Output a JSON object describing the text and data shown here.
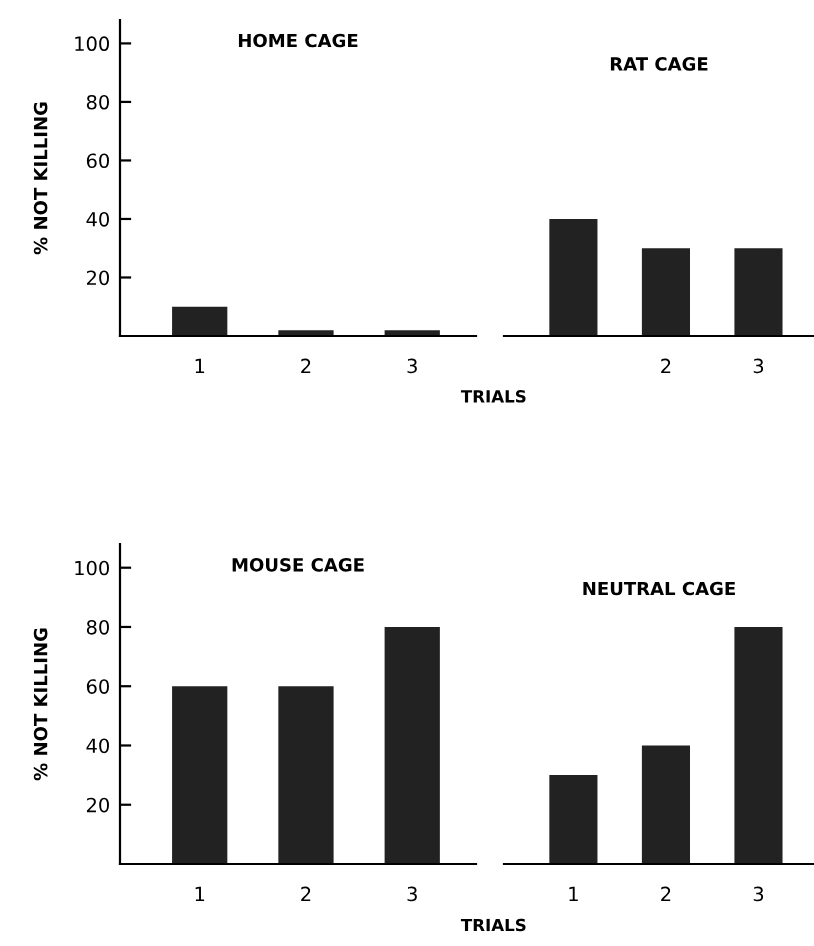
{
  "chart_data": [
    {
      "type": "bar",
      "title": "HOME CAGE",
      "ylabel": "% NOT KILLING",
      "xlabel": "TRIALS",
      "categories": [
        "1",
        "2",
        "3"
      ],
      "values": [
        10,
        2,
        2
      ],
      "color": "#222222",
      "ylim": [
        0,
        108
      ],
      "yticks": [
        20,
        40,
        60,
        80,
        100
      ],
      "grid": false,
      "legend": false
    },
    {
      "type": "bar",
      "title": "RAT CAGE",
      "categories": [
        null,
        "2",
        "3"
      ],
      "values": [
        40,
        30,
        30
      ],
      "color": "#222222",
      "ylim": [
        0,
        100
      ],
      "yticks": [
        20,
        40,
        60,
        80,
        100
      ],
      "tick_labels": "x",
      "grid": false,
      "legend": false
    },
    {
      "type": "bar",
      "title": "MOUSE CAGE",
      "ylabel": "% NOT KILLING",
      "xlabel": "TRIALS",
      "categories": [
        "1",
        "2",
        "3"
      ],
      "values": [
        60,
        60,
        80
      ],
      "color": "#222222",
      "ylim": [
        0,
        108
      ],
      "yticks": [
        20,
        40,
        60,
        80,
        100
      ],
      "grid": false,
      "legend": false
    },
    {
      "type": "bar",
      "title": "NEUTRAL CAGE",
      "categories": [
        "1",
        "2",
        "3"
      ],
      "values": [
        30,
        40,
        80
      ],
      "color": "#222222",
      "ylim": [
        0,
        100
      ],
      "yticks": [
        20,
        40,
        60,
        80,
        100
      ],
      "tick_labels": "x",
      "grid": false,
      "legend": false
    }
  ]
}
